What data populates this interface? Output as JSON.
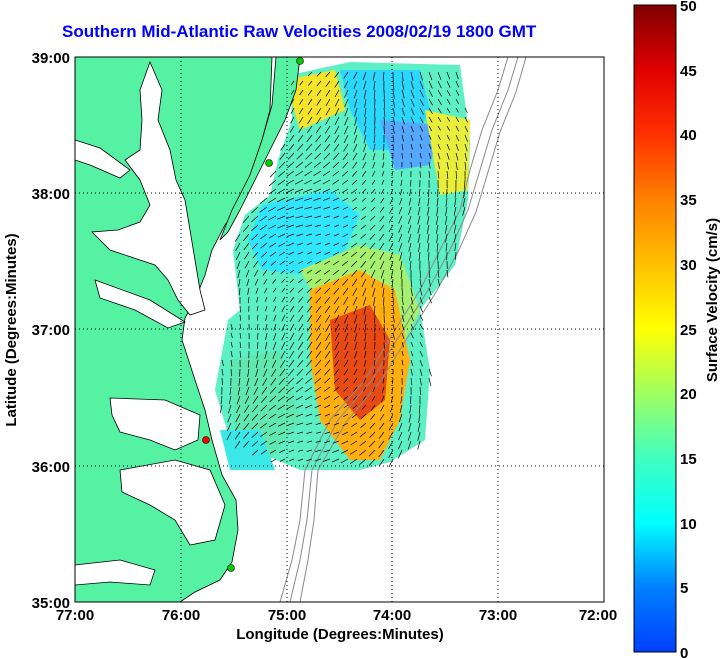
{
  "title": "Southern Mid-Atlantic Raw Velocities 2008/02/19 1800 GMT",
  "map": {
    "xlabel": "Longitude (Degrees:Minutes)",
    "ylabel": "Latitude (Degrees:Minutes)",
    "lon_ticks": [
      "77:00",
      "76:00",
      "75:00",
      "74:00",
      "73:00",
      "72:00"
    ],
    "lat_ticks": [
      "39:00",
      "38:00",
      "37:00",
      "36:00",
      "35:00"
    ],
    "lon_range": [
      -77,
      -72
    ],
    "lat_range": [
      35,
      39
    ],
    "land_color": "#55f2a4",
    "water_color": "#ffffff"
  },
  "colorbar": {
    "label": "Surface Velocity (cm/s)",
    "ticks": [
      "0",
      "5",
      "10",
      "15",
      "20",
      "25",
      "30",
      "35",
      "40",
      "45",
      "50"
    ],
    "range": [
      0,
      50
    ]
  },
  "stations": [
    {
      "color": "#00cc00"
    },
    {
      "color": "#00cc00"
    },
    {
      "color": "#ff0000"
    },
    {
      "color": "#00cc00"
    }
  ]
}
